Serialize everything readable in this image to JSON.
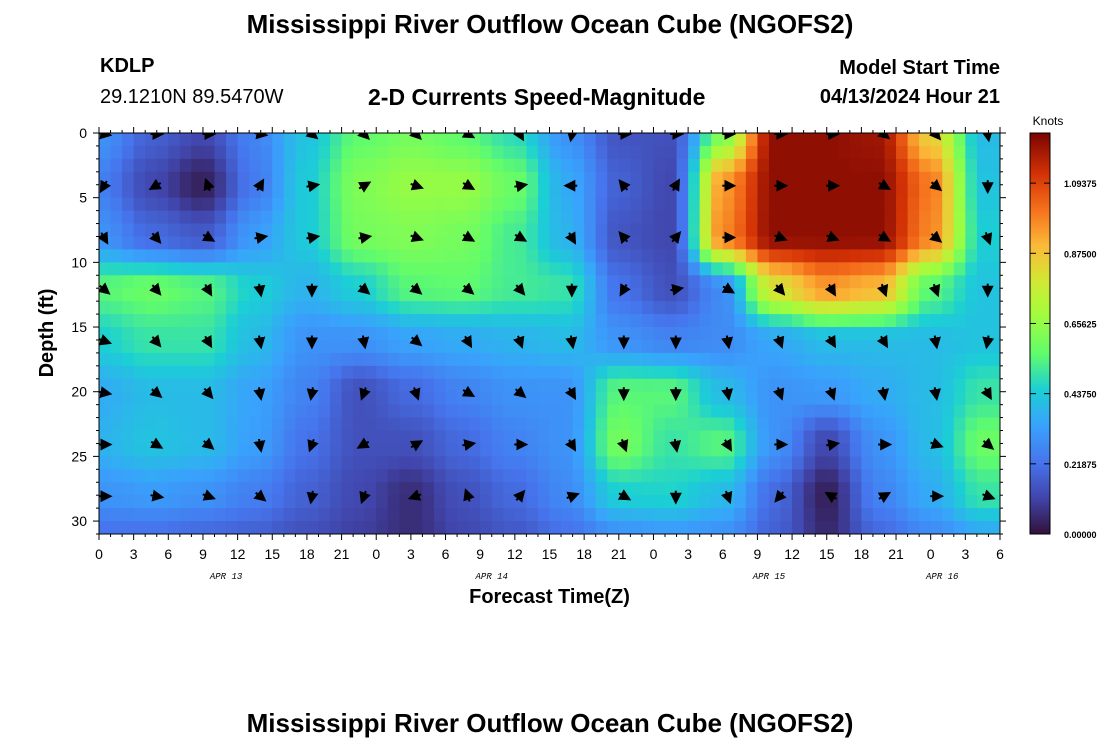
{
  "header": {
    "title": "Mississippi River Outflow Ocean Cube (NGOFS2)",
    "station_id": "KDLP",
    "station_coords": "29.1210N  89.5470W",
    "product": "2-D Currents Speed-Magnitude",
    "model_start_label": "Model Start Time",
    "model_start_value": "04/13/2024 Hour 21"
  },
  "footer": {
    "title": "Mississippi River Outflow Ocean Cube (NGOFS2)"
  },
  "chart_data": {
    "type": "heatmap",
    "xlabel": "Forecast Time(Z)",
    "ylabel": "Depth (ft)",
    "colorbar_label": "Knots",
    "x_hours": [
      0,
      78
    ],
    "y_depth_range": [
      0,
      31
    ],
    "y_ticks": [
      "0",
      "5",
      "10",
      "15",
      "20",
      "25",
      "30"
    ],
    "x_tick_labels": [
      "0",
      "3",
      "6",
      "9",
      "12",
      "15",
      "18",
      "21",
      "0",
      "3",
      "6",
      "9",
      "12",
      "15",
      "18",
      "21",
      "0",
      "3",
      "6",
      "9",
      "12",
      "15",
      "18",
      "21",
      "0",
      "3",
      "6"
    ],
    "date_labels": [
      {
        "text": "APR 13",
        "hour": 11
      },
      {
        "text": "APR 14",
        "hour": 34
      },
      {
        "text": "APR 15",
        "hour": 58
      },
      {
        "text": "APR 16",
        "hour": 73
      }
    ],
    "colorbar": {
      "min": 0.0,
      "max": 1.25,
      "tick_labels": [
        "1.09375",
        "0.87500",
        "0.65625",
        "0.43750",
        "0.21875",
        "0.00000"
      ],
      "tick_values": [
        1.09375,
        0.875,
        0.65625,
        0.4375,
        0.21875,
        0.0
      ]
    },
    "speed_grid": {
      "times": [
        0,
        4.5,
        9,
        13.5,
        18,
        22.5,
        27,
        31.5,
        36,
        40.5,
        45,
        49.5,
        54,
        58.5,
        63,
        67.5,
        72,
        76.5
      ],
      "depths": [
        0,
        4,
        8,
        12,
        16,
        20,
        24,
        28,
        31
      ],
      "values": [
        [
          0.3,
          0.18,
          0.12,
          0.26,
          0.42,
          0.56,
          0.6,
          0.56,
          0.48,
          0.3,
          0.15,
          0.14,
          0.62,
          1.22,
          1.22,
          1.2,
          0.85,
          0.4
        ],
        [
          0.25,
          0.12,
          0.03,
          0.24,
          0.44,
          0.62,
          0.66,
          0.66,
          0.58,
          0.36,
          0.18,
          0.12,
          0.95,
          1.22,
          1.22,
          1.22,
          1.0,
          0.42
        ],
        [
          0.3,
          0.2,
          0.16,
          0.32,
          0.44,
          0.6,
          0.62,
          0.6,
          0.52,
          0.38,
          0.15,
          0.12,
          0.98,
          1.22,
          1.22,
          1.22,
          0.98,
          0.45
        ],
        [
          0.55,
          0.58,
          0.55,
          0.45,
          0.38,
          0.45,
          0.55,
          0.56,
          0.52,
          0.5,
          0.22,
          0.14,
          0.28,
          0.8,
          0.95,
          0.9,
          0.55,
          0.42
        ],
        [
          0.45,
          0.5,
          0.5,
          0.4,
          0.3,
          0.3,
          0.34,
          0.36,
          0.38,
          0.4,
          0.3,
          0.26,
          0.28,
          0.35,
          0.4,
          0.4,
          0.4,
          0.42
        ],
        [
          0.36,
          0.4,
          0.4,
          0.34,
          0.26,
          0.14,
          0.2,
          0.26,
          0.3,
          0.3,
          0.55,
          0.55,
          0.4,
          0.3,
          0.32,
          0.36,
          0.4,
          0.5
        ],
        [
          0.38,
          0.42,
          0.4,
          0.33,
          0.22,
          0.14,
          0.14,
          0.2,
          0.26,
          0.3,
          0.6,
          0.5,
          0.55,
          0.3,
          0.12,
          0.3,
          0.4,
          0.58
        ],
        [
          0.3,
          0.32,
          0.3,
          0.25,
          0.18,
          0.12,
          0.06,
          0.14,
          0.2,
          0.28,
          0.45,
          0.46,
          0.4,
          0.2,
          0.03,
          0.26,
          0.36,
          0.5
        ],
        [
          0.22,
          0.22,
          0.2,
          0.18,
          0.14,
          0.1,
          0.06,
          0.12,
          0.16,
          0.22,
          0.3,
          0.32,
          0.3,
          0.18,
          0.05,
          0.2,
          0.28,
          0.36
        ]
      ]
    },
    "vectors": {
      "times": [
        0,
        4.5,
        9,
        13.5,
        18,
        22.5,
        27,
        31.5,
        36,
        40.5,
        45,
        49.5,
        54,
        58.5,
        63,
        67.5,
        72,
        76.5
      ],
      "depths": [
        0,
        4,
        8,
        12,
        16,
        20,
        24,
        28
      ],
      "direction_deg": [
        [
          100,
          90,
          90,
          100,
          130,
          135,
          135,
          120,
          150,
          190,
          90,
          90,
          90,
          90,
          90,
          130,
          140,
          170
        ],
        [
          210,
          240,
          340,
          30,
          80,
          60,
          110,
          120,
          80,
          270,
          320,
          30,
          90,
          90,
          90,
          120,
          130,
          180
        ],
        [
          150,
          140,
          120,
          80,
          80,
          80,
          110,
          120,
          120,
          150,
          320,
          40,
          90,
          110,
          110,
          120,
          130,
          160
        ],
        [
          130,
          140,
          150,
          170,
          180,
          130,
          130,
          130,
          140,
          180,
          210,
          80,
          120,
          140,
          150,
          160,
          160,
          180
        ],
        [
          110,
          140,
          150,
          170,
          180,
          170,
          130,
          150,
          160,
          170,
          180,
          180,
          170,
          160,
          150,
          150,
          170,
          190
        ],
        [
          100,
          130,
          140,
          170,
          190,
          200,
          160,
          120,
          130,
          150,
          180,
          180,
          170,
          160,
          160,
          170,
          170,
          150
        ],
        [
          90,
          120,
          130,
          170,
          200,
          240,
          60,
          80,
          90,
          150,
          160,
          170,
          150,
          90,
          80,
          90,
          110,
          130
        ],
        [
          90,
          100,
          110,
          130,
          190,
          200,
          250,
          340,
          40,
          70,
          120,
          180,
          160,
          220,
          300,
          60,
          90,
          110
        ]
      ]
    }
  }
}
